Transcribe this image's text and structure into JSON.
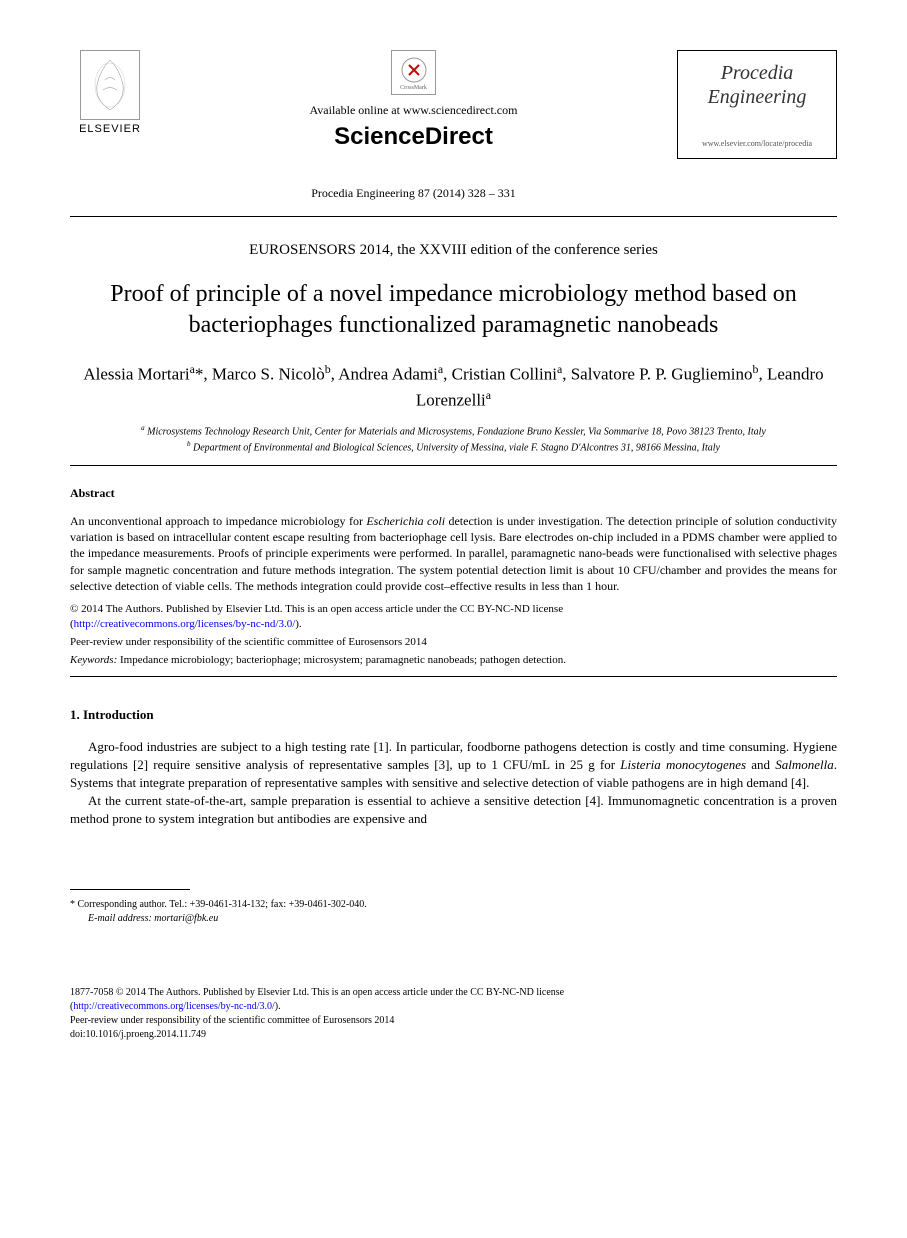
{
  "header": {
    "elsevier_label": "ELSEVIER",
    "crossmark_label": "CrossMark",
    "available_online": "Available online at www.sciencedirect.com",
    "sciencedirect": "ScienceDirect",
    "citation": "Procedia Engineering 87 (2014) 328 – 331",
    "journal_name_line1": "Procedia",
    "journal_name_line2": "Engineering",
    "journal_url": "www.elsevier.com/locate/procedia"
  },
  "conference": "EUROSENSORS 2014, the XXVIII edition of the conference series",
  "title": "Proof of principle of a novel impedance microbiology method based on bacteriophages functionalized paramagnetic nanobeads",
  "authors_html": "Alessia Mortari<sup>a</sup>*, Marco S. Nicolò<sup>b</sup>, Andrea Adami<sup>a</sup>, Cristian Collini<sup>a</sup>, Salvatore P. P. Gugliemino<sup>b</sup>, Leandro Lorenzelli<sup>a</sup>",
  "affiliations": {
    "a": "Microsystems Technology Research Unit, Center for Materials and Microsystems, Fondazione Bruno Kessler, Via Sommarive 18, Povo 38123 Trento, Italy",
    "b": "Department of Environmental and Biological Sciences, University of Messina, viale F. Stagno D'Alcontres 31, 98166 Messina, Italy"
  },
  "abstract": {
    "heading": "Abstract",
    "text": "An unconventional approach to impedance microbiology for Escherichia coli detection is under investigation. The detection principle of solution conductivity variation is based on intracellular content escape resulting from bacteriophage cell lysis. Bare electrodes on-chip included in a PDMS chamber were applied to the impedance measurements. Proofs of principle experiments were performed. In parallel, paramagnetic nano-beads were functionalised with selective phages for sample magnetic concentration and future methods integration. The system potential detection limit is about 10 CFU/chamber and provides the means for selective detection of viable cells. The methods integration could provide cost–effective results in less than 1 hour."
  },
  "copyright": {
    "line1": "© 2014 The Authors. Published by Elsevier Ltd. This is an open access article under the CC BY-NC-ND license",
    "link": "http://creativecommons.org/licenses/by-nc-nd/3.0/",
    "peer_review": "Peer-review under responsibility of the scientific committee of Eurosensors 2014"
  },
  "keywords": {
    "label": "Keywords:",
    "text": "Impedance microbiology; bacteriophage; microsystem; paramagnetic nanobeads; pathogen detection."
  },
  "section1": {
    "heading": "1. Introduction",
    "para1": "Agro-food industries are subject to a high testing rate [1]. In particular, foodborne pathogens detection is costly and time consuming. Hygiene regulations [2] require sensitive analysis of representative samples [3], up to 1 CFU/mL in 25 g for Listeria monocytogenes and Salmonella. Systems that integrate preparation of representative samples with sensitive and selective detection of viable pathogens are in high demand [4].",
    "para2": "At the current state-of-the-art, sample preparation is essential to achieve a sensitive detection [4]. Immunomagnetic concentration is a proven method prone to system integration but antibodies are expensive and"
  },
  "footnote": {
    "corresponding": "* Corresponding author. Tel.: +39-0461-314-132; fax: +39-0461-302-040.",
    "email_label": "E-mail address:",
    "email": "mortari@fbk.eu"
  },
  "footer": {
    "issn_line": "1877-7058 © 2014 The Authors. Published by Elsevier Ltd. This is an open access article under the CC BY-NC-ND license",
    "link": "http://creativecommons.org/licenses/by-nc-nd/3.0/",
    "peer_review": "Peer-review under responsibility of the scientific committee of Eurosensors 2014",
    "doi": "doi:10.1016/j.proeng.2014.11.749"
  },
  "colors": {
    "text": "#000000",
    "link": "#0000ee",
    "background": "#ffffff",
    "border": "#000000"
  },
  "typography": {
    "body_font": "Times New Roman",
    "title_fontsize": 24,
    "authors_fontsize": 17,
    "body_fontsize": 13,
    "abstract_fontsize": 12,
    "footnote_fontsize": 10
  }
}
